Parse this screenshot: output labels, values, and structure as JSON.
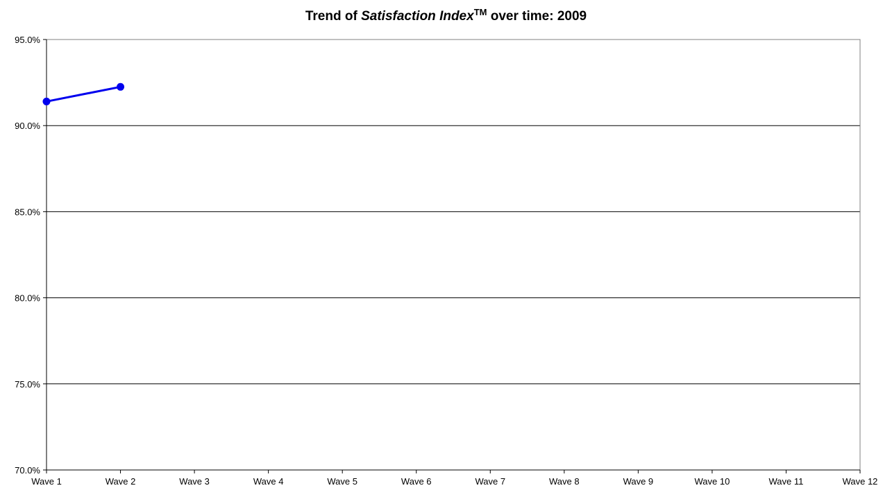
{
  "chart_data": {
    "type": "line",
    "title": {
      "prefix": "Trend of ",
      "emphasis": "Satisfaction Index",
      "superscript": "TM",
      "suffix": " over time: 2009"
    },
    "categories": [
      "Wave 1",
      "Wave 2",
      "Wave 3",
      "Wave 4",
      "Wave 5",
      "Wave 6",
      "Wave 7",
      "Wave 8",
      "Wave 9",
      "Wave 10",
      "Wave 11",
      "Wave 12"
    ],
    "series": [
      {
        "values": [
          91.4,
          92.25,
          null,
          null,
          null,
          null,
          null,
          null,
          null,
          null,
          null,
          null
        ],
        "color": "#0000ee"
      }
    ],
    "ylim": [
      70,
      95
    ],
    "yticks": [
      70,
      75,
      80,
      85,
      90,
      95
    ],
    "ytick_labels": [
      "70.0%",
      "75.0%",
      "80.0%",
      "85.0%",
      "90.0%",
      "95.0%"
    ],
    "grid": true,
    "legend": "none"
  }
}
